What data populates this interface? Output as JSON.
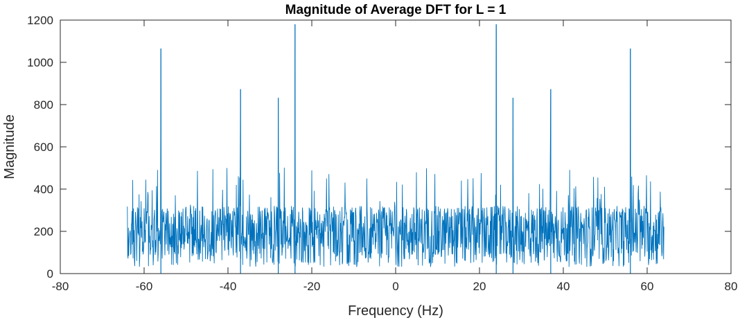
{
  "chart_data": {
    "type": "line",
    "title": "Magnitude of Average DFT for L = 1",
    "xlabel": "Frequency (Hz)",
    "ylabel": "Magnitude",
    "xlim": [
      -80,
      80
    ],
    "ylim": [
      0,
      1200
    ],
    "x_ticks": [
      "-80",
      "-60",
      "-40",
      "-20",
      "0",
      "20",
      "40",
      "60",
      "80"
    ],
    "y_ticks": [
      "0",
      "200",
      "400",
      "600",
      "800",
      "1000",
      "1200"
    ],
    "grid": false,
    "line_color": "#0072BD",
    "frequency_range": [
      -64,
      64
    ],
    "noise_floor": {
      "typical_min": 30,
      "typical_mean": 170,
      "typical_max": 320,
      "max_spike": 515
    },
    "peaks": [
      {
        "x": -56,
        "y": 1065
      },
      {
        "x": -37,
        "y": 873
      },
      {
        "x": -28,
        "y": 832
      },
      {
        "x": -24,
        "y": 1180
      },
      {
        "x": 24,
        "y": 1180
      },
      {
        "x": 28,
        "y": 832
      },
      {
        "x": 37,
        "y": 873
      },
      {
        "x": 56,
        "y": 1065
      }
    ]
  }
}
